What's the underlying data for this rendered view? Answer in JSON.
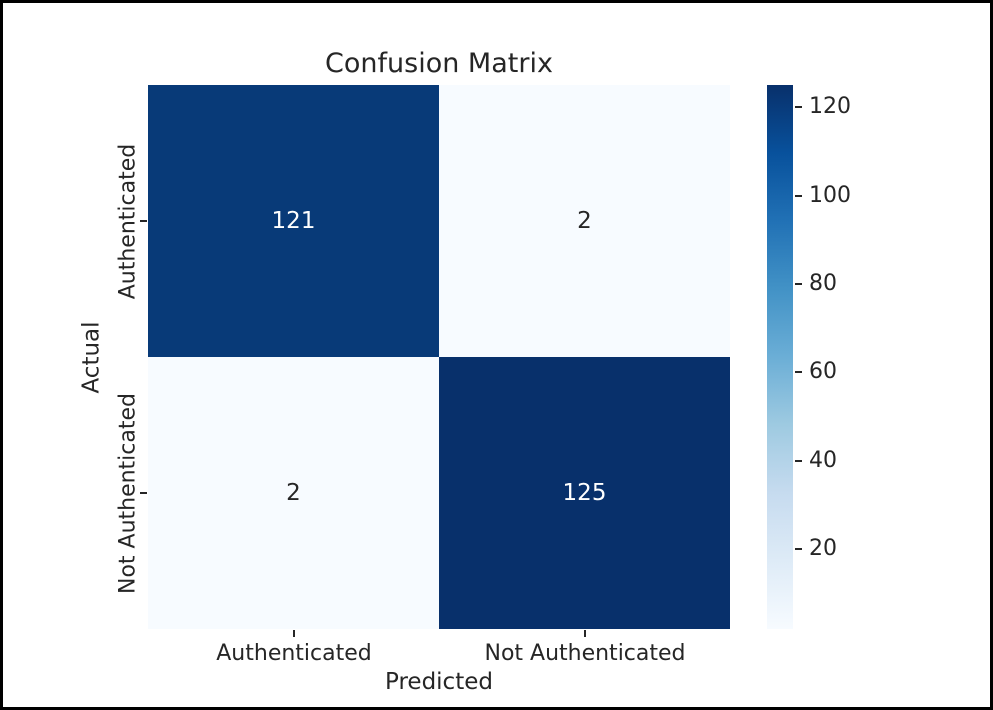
{
  "frame": {
    "border_color": "#000000",
    "background_color": "#ffffff"
  },
  "chart_data": {
    "type": "heatmap",
    "title": "Confusion Matrix",
    "xlabel": "Predicted",
    "ylabel": "Actual",
    "x_categories": [
      "Authenticated",
      "Not Authenticated"
    ],
    "y_categories": [
      "Authenticated",
      "Not Authenticated"
    ],
    "values": [
      [
        121,
        2
      ],
      [
        2,
        125
      ]
    ],
    "cell_colors": [
      [
        "#083a78",
        "#f7fbff"
      ],
      [
        "#f7fbff",
        "#08306b"
      ]
    ],
    "annotation_colors": [
      [
        "#ffffff",
        "#262626"
      ],
      [
        "#262626",
        "#ffffff"
      ]
    ],
    "colormap": "Blues",
    "vmin": 2,
    "vmax": 125,
    "grid": false,
    "colorbar": {
      "position": "right",
      "ticks": [
        20,
        40,
        60,
        80,
        100,
        120
      ],
      "gradient_stops": [
        {
          "pos": 0,
          "color": "#08306b"
        },
        {
          "pos": 12.5,
          "color": "#08519c"
        },
        {
          "pos": 25,
          "color": "#2171b5"
        },
        {
          "pos": 37.5,
          "color": "#4292c6"
        },
        {
          "pos": 50,
          "color": "#6baed6"
        },
        {
          "pos": 62.5,
          "color": "#9ecae1"
        },
        {
          "pos": 75,
          "color": "#c6dbef"
        },
        {
          "pos": 87.5,
          "color": "#deebf7"
        },
        {
          "pos": 100,
          "color": "#f7fbff"
        }
      ]
    }
  }
}
